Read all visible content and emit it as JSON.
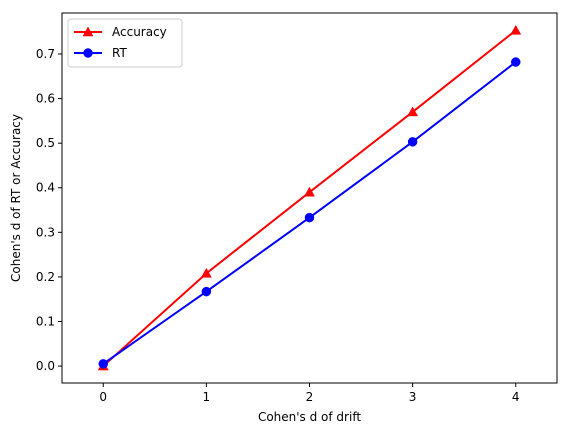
{
  "chart_data": {
    "type": "line",
    "title": "",
    "xlabel": "Cohen's d of drift",
    "ylabel": "Cohen's d of RT or Accuracy",
    "x": [
      0,
      1,
      2,
      3,
      4
    ],
    "xlim": [
      -0.4,
      4.4
    ],
    "ylim": [
      -0.038,
      0.792
    ],
    "xticks": [
      0,
      1,
      2,
      3,
      4
    ],
    "yticks": [
      0.0,
      0.1,
      0.2,
      0.3,
      0.4,
      0.5,
      0.6,
      0.7
    ],
    "xtick_labels": [
      "0",
      "1",
      "2",
      "3",
      "4"
    ],
    "ytick_labels": [
      "0.0",
      "0.1",
      "0.2",
      "0.3",
      "0.4",
      "0.5",
      "0.6",
      "0.7"
    ],
    "grid": false,
    "legend_position": "upper-left",
    "series": [
      {
        "name": "Accuracy",
        "values": [
          0.0,
          0.208,
          0.39,
          0.57,
          0.753
        ],
        "color": "#ff0000",
        "marker": "triangle"
      },
      {
        "name": "RT",
        "values": [
          0.005,
          0.167,
          0.333,
          0.503,
          0.682
        ],
        "color": "#0000ff",
        "marker": "circle"
      }
    ]
  }
}
